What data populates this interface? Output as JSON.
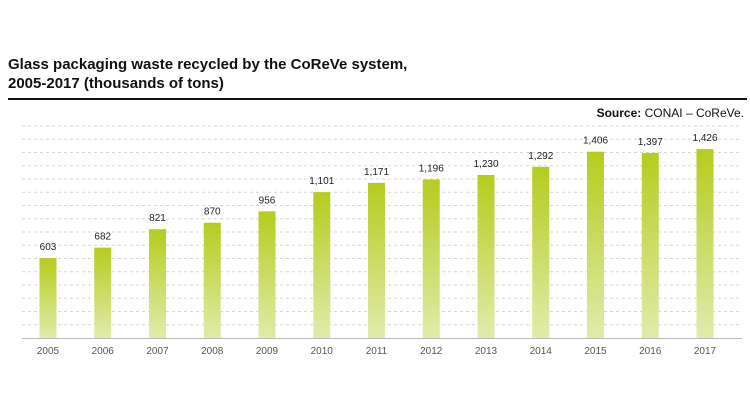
{
  "header": {
    "title_line1": "Glass packaging waste recycled by the CoReVe system,",
    "title_line2": "2005-2017 (thousands of tons)",
    "source_label": "Source:",
    "source_text": "CONAI – CoReVe."
  },
  "chart_data": {
    "type": "bar",
    "title": "Glass packaging waste recycled by the CoReVe system, 2005-2017 (thousands of tons)",
    "xlabel": "",
    "ylabel": "",
    "categories": [
      "2005",
      "2006",
      "2007",
      "2008",
      "2009",
      "2010",
      "2011",
      "2012",
      "2013",
      "2014",
      "2015",
      "2016",
      "2017"
    ],
    "values": [
      603,
      682,
      821,
      870,
      956,
      1101,
      1171,
      1196,
      1230,
      1292,
      1406,
      1397,
      1426
    ],
    "value_labels": [
      "603",
      "682",
      "821",
      "870",
      "956",
      "1,101",
      "1,171",
      "1,196",
      "1,230",
      "1,292",
      "1,406",
      "1,397",
      "1,426"
    ],
    "ylim": [
      0,
      1600
    ],
    "grid": true,
    "legend": "none",
    "colors": {
      "bar_top": "#b5cc1e",
      "bar_bottom": "#e1ebab"
    }
  }
}
